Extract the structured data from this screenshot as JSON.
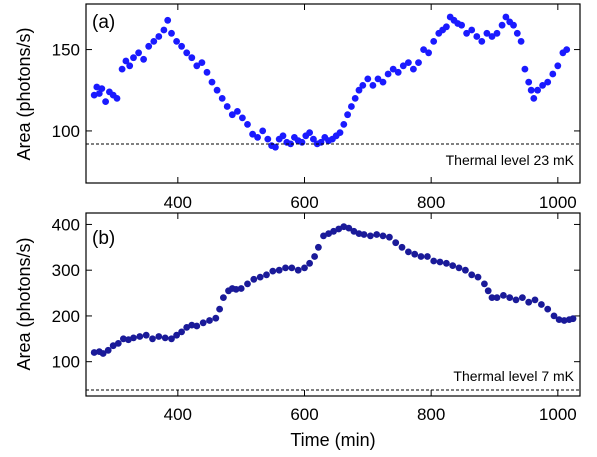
{
  "chart_data": [
    {
      "type": "scatter",
      "panel_label": "(a)",
      "xlabel": "",
      "ylabel": "Area (photons/s)",
      "xlim": [
        255,
        1035
      ],
      "ylim": [
        68,
        178
      ],
      "x_ticks": [
        400,
        600,
        800,
        1000
      ],
      "y_ticks": [
        100,
        150
      ],
      "threshold": {
        "value": 92,
        "label": "Thermal level 23 mK"
      },
      "marker_color": "#1a1aff",
      "series": [
        {
          "points": [
            [
              268,
              122
            ],
            [
              272,
              127
            ],
            [
              276,
              123
            ],
            [
              280,
              126
            ],
            [
              286,
              118
            ],
            [
              292,
              124
            ],
            [
              298,
              122
            ],
            [
              304,
              120
            ],
            [
              312,
              138
            ],
            [
              318,
              143
            ],
            [
              324,
              140
            ],
            [
              330,
              145
            ],
            [
              338,
              148
            ],
            [
              346,
              144
            ],
            [
              354,
              152
            ],
            [
              362,
              155
            ],
            [
              370,
              158
            ],
            [
              378,
              162
            ],
            [
              384,
              168
            ],
            [
              390,
              160
            ],
            [
              398,
              155
            ],
            [
              406,
              152
            ],
            [
              414,
              148
            ],
            [
              422,
              145
            ],
            [
              430,
              140
            ],
            [
              438,
              142
            ],
            [
              446,
              136
            ],
            [
              454,
              130
            ],
            [
              462,
              125
            ],
            [
              470,
              120
            ],
            [
              478,
              115
            ],
            [
              486,
              110
            ],
            [
              494,
              112
            ],
            [
              502,
              108
            ],
            [
              510,
              104
            ],
            [
              518,
              98
            ],
            [
              526,
              96
            ],
            [
              534,
              100
            ],
            [
              542,
              95
            ],
            [
              548,
              91
            ],
            [
              554,
              90
            ],
            [
              560,
              95
            ],
            [
              566,
              97
            ],
            [
              572,
              93
            ],
            [
              578,
              92
            ],
            [
              584,
              96
            ],
            [
              590,
              94
            ],
            [
              596,
              93
            ],
            [
              602,
              97
            ],
            [
              608,
              99
            ],
            [
              614,
              95
            ],
            [
              620,
              92
            ],
            [
              626,
              93
            ],
            [
              632,
              96
            ],
            [
              638,
              94
            ],
            [
              644,
              95
            ],
            [
              650,
              97
            ],
            [
              656,
              99
            ],
            [
              662,
              104
            ],
            [
              668,
              110
            ],
            [
              674,
              115
            ],
            [
              680,
              120
            ],
            [
              686,
              125
            ],
            [
              692,
              128
            ],
            [
              700,
              132
            ],
            [
              708,
              128
            ],
            [
              716,
              132
            ],
            [
              724,
              130
            ],
            [
              732,
              135
            ],
            [
              740,
              138
            ],
            [
              748,
              136
            ],
            [
              756,
              140
            ],
            [
              764,
              142
            ],
            [
              772,
              138
            ],
            [
              780,
              142
            ],
            [
              788,
              150
            ],
            [
              796,
              148
            ],
            [
              804,
              155
            ],
            [
              812,
              160
            ],
            [
              818,
              162
            ],
            [
              824,
              164
            ],
            [
              830,
              170
            ],
            [
              836,
              168
            ],
            [
              842,
              166
            ],
            [
              848,
              165
            ],
            [
              856,
              160
            ],
            [
              864,
              162
            ],
            [
              872,
              158
            ],
            [
              880,
              155
            ],
            [
              888,
              160
            ],
            [
              896,
              158
            ],
            [
              904,
              160
            ],
            [
              912,
              165
            ],
            [
              918,
              170
            ],
            [
              924,
              167
            ],
            [
              930,
              165
            ],
            [
              936,
              160
            ],
            [
              942,
              155
            ],
            [
              948,
              138
            ],
            [
              954,
              130
            ],
            [
              958,
              125
            ],
            [
              962,
              120
            ],
            [
              968,
              125
            ],
            [
              976,
              128
            ],
            [
              984,
              130
            ],
            [
              992,
              135
            ],
            [
              1000,
              140
            ],
            [
              1008,
              148
            ],
            [
              1014,
              150
            ]
          ]
        }
      ]
    },
    {
      "type": "scatter",
      "panel_label": "(b)",
      "xlabel": "Time (min)",
      "ylabel": "Area (photons/s)",
      "xlim": [
        255,
        1035
      ],
      "ylim": [
        25,
        425
      ],
      "x_ticks": [
        400,
        600,
        800,
        1000
      ],
      "y_ticks": [
        100,
        200,
        300,
        400
      ],
      "threshold": {
        "value": 38,
        "label": "Thermal level 7 mK"
      },
      "marker_color": "#1a1a99",
      "series": [
        {
          "points": [
            [
              268,
              120
            ],
            [
              276,
              122
            ],
            [
              282,
              118
            ],
            [
              290,
              125
            ],
            [
              298,
              135
            ],
            [
              306,
              140
            ],
            [
              314,
              150
            ],
            [
              322,
              148
            ],
            [
              330,
              152
            ],
            [
              340,
              155
            ],
            [
              350,
              158
            ],
            [
              360,
              150
            ],
            [
              370,
              155
            ],
            [
              380,
              152
            ],
            [
              390,
              150
            ],
            [
              398,
              158
            ],
            [
              406,
              165
            ],
            [
              414,
              175
            ],
            [
              422,
              180
            ],
            [
              430,
              178
            ],
            [
              440,
              185
            ],
            [
              450,
              190
            ],
            [
              460,
              195
            ],
            [
              466,
              215
            ],
            [
              472,
              240
            ],
            [
              480,
              255
            ],
            [
              486,
              260
            ],
            [
              492,
              258
            ],
            [
              500,
              260
            ],
            [
              510,
              270
            ],
            [
              520,
              280
            ],
            [
              530,
              285
            ],
            [
              540,
              290
            ],
            [
              550,
              298
            ],
            [
              560,
              300
            ],
            [
              570,
              305
            ],
            [
              580,
              305
            ],
            [
              590,
              300
            ],
            [
              600,
              305
            ],
            [
              608,
              315
            ],
            [
              616,
              330
            ],
            [
              622,
              350
            ],
            [
              630,
              375
            ],
            [
              638,
              380
            ],
            [
              646,
              385
            ],
            [
              654,
              390
            ],
            [
              662,
              395
            ],
            [
              670,
              392
            ],
            [
              678,
              385
            ],
            [
              686,
              380
            ],
            [
              694,
              378
            ],
            [
              704,
              375
            ],
            [
              714,
              378
            ],
            [
              724,
              375
            ],
            [
              734,
              372
            ],
            [
              744,
              360
            ],
            [
              754,
              350
            ],
            [
              764,
              340
            ],
            [
              774,
              335
            ],
            [
              784,
              330
            ],
            [
              794,
              330
            ],
            [
              804,
              320
            ],
            [
              814,
              318
            ],
            [
              824,
              315
            ],
            [
              834,
              310
            ],
            [
              844,
              305
            ],
            [
              854,
              300
            ],
            [
              864,
              290
            ],
            [
              874,
              285
            ],
            [
              884,
              270
            ],
            [
              890,
              255
            ],
            [
              896,
              240
            ],
            [
              904,
              240
            ],
            [
              914,
              245
            ],
            [
              924,
              240
            ],
            [
              934,
              235
            ],
            [
              944,
              240
            ],
            [
              954,
              230
            ],
            [
              964,
              235
            ],
            [
              974,
              225
            ],
            [
              984,
              215
            ],
            [
              994,
              200
            ],
            [
              1002,
              192
            ],
            [
              1010,
              190
            ],
            [
              1018,
              192
            ],
            [
              1024,
              194
            ]
          ]
        }
      ]
    }
  ]
}
